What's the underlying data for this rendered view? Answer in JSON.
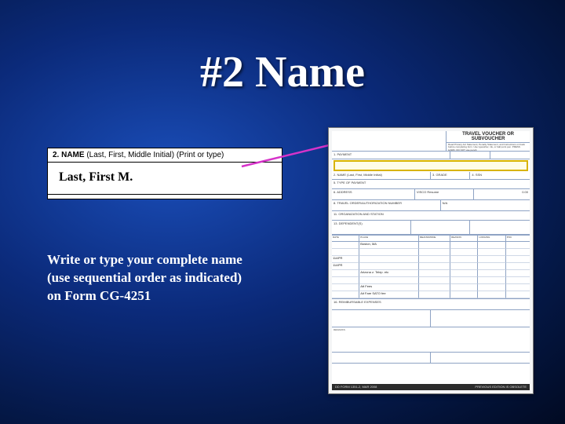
{
  "title": "#2 Name",
  "name_field": {
    "header_bold": "2. NAME",
    "header_rest": " (Last, First, Middle Initial) (Print or type)",
    "value": "Last, First M."
  },
  "instruction_lines": [
    "Write or type your complete name",
    "(use sequential order as indicated)",
    "on Form CG-4251"
  ],
  "form": {
    "title": "TRAVEL VOUCHER OR SUBVOUCHER",
    "note": "Read Privacy Act Statement, Penalty Statement, and Instructions on back before completing form. Use typewriter, ink, or ball point pen. PRESS HARD. DO NOT use pencil.",
    "row1": {
      "c1": "1. PAYMENT",
      "c2": "",
      "c3": ""
    },
    "row2": {
      "c1": "2. NAME (Last, First, Middle Initial)",
      "c2": "3. GRADE",
      "c3": "4. SSN"
    },
    "row3": {
      "c1": "5. TYPE OF PAYMENT",
      "c2": "",
      "c3": ""
    },
    "row4": {
      "c1": "6. ADDRESS",
      "c2": "VISCO Resume",
      "c3": "0.00"
    },
    "row5": {
      "c1": "8. TRAVEL ORDER/AUTHORIZATION NUMBER",
      "c2": "N/A",
      "c3": ""
    },
    "row6": {
      "c1": "11. ORGANIZATION AND STATION",
      "c2": "",
      "c3": ""
    },
    "row7": {
      "c1": "13. DEPENDENT(S)",
      "c2": "",
      "c3": ""
    },
    "itin_header": [
      "DATE",
      "PLACE",
      "MEANS/MODE",
      "REASON",
      "LODGING",
      "POC"
    ],
    "itin_rows": [
      [
        "",
        "Boston, MA",
        "",
        "",
        "",
        ""
      ],
      [
        "",
        "",
        "",
        "",
        "",
        ""
      ],
      [
        "11APR",
        "",
        "",
        "",
        "",
        ""
      ],
      [
        "11APR",
        "",
        "",
        "",
        "",
        ""
      ],
      [
        "",
        "Arizona z. Telep. etc",
        "",
        "",
        "",
        ""
      ],
      [
        "",
        "",
        "",
        "",
        "",
        ""
      ],
      [
        "",
        "Att Fees",
        "",
        "",
        "",
        ""
      ],
      [
        "",
        "Ait Fare SATO fee",
        "",
        "",
        "",
        ""
      ]
    ],
    "row_reimb": "16. REIMBURSABLE EXPENSES",
    "row_remarks": "REMARKS",
    "footer_left": "DD FORM 1351-2, MAR 2008",
    "footer_right": "PREVIOUS EDITION IS OBSOLETE"
  },
  "colors": {
    "arrow": "#d633c9",
    "highlight_border": "#d8b300",
    "form_line": "#8ea3c4"
  }
}
